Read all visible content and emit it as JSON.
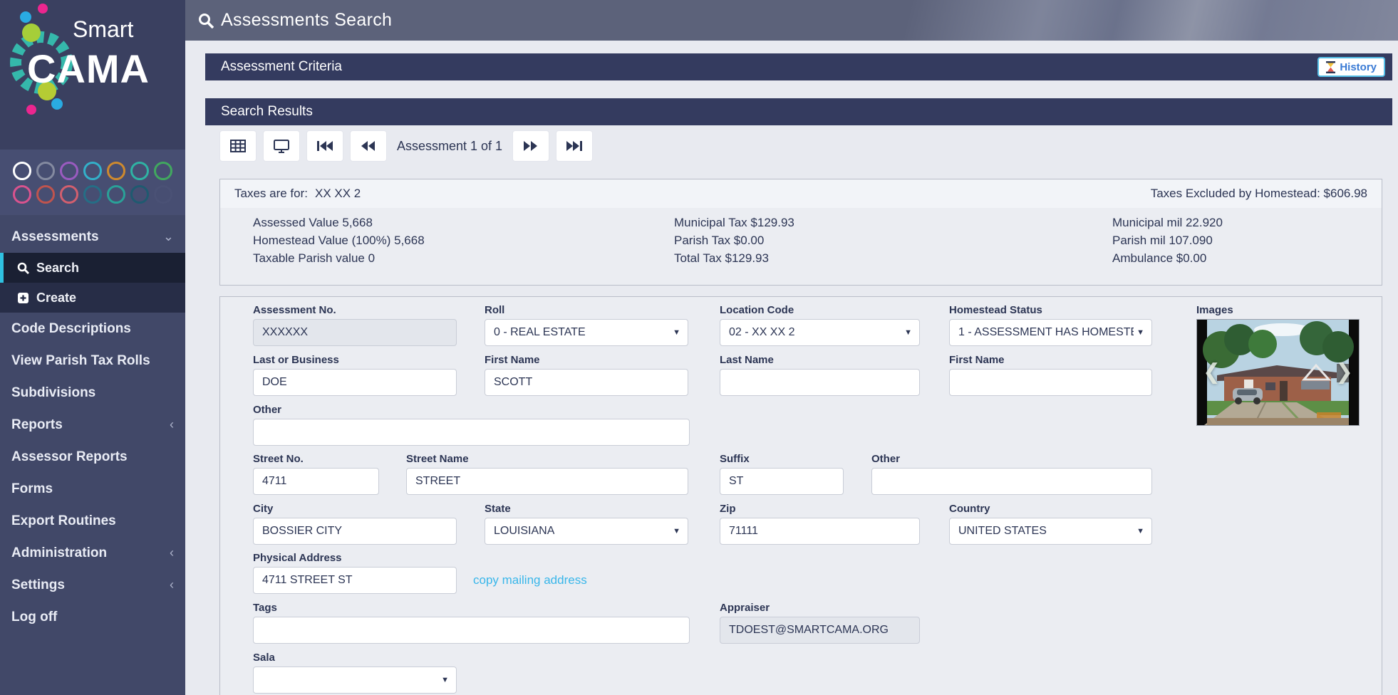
{
  "brand": {
    "smart": "Smart",
    "cama": "CAMA"
  },
  "theme": {
    "accent_cyan": "#2fc1e1",
    "navy_bar": "#343b5f",
    "sidebar_bg": "#414868",
    "link_blue": "#38b6ea",
    "history_blue": "#3a7bd5"
  },
  "icons": {
    "chevron_down": "⌄",
    "chevron_left": "‹",
    "carousel_prev": "❮",
    "carousel_next": "❯",
    "select_caret": "▼"
  },
  "sidebar": {
    "swatches_row1": [
      "#ffffff",
      "#848aa0",
      "#9a5bc0",
      "#33b0c9",
      "#cf8a2e",
      "#2fb3a4",
      "#41a85f"
    ],
    "swatches_row2": [
      "#d9538e",
      "#bf544e",
      "#d25f6e",
      "#256e86",
      "#2aa198",
      "#1f5a70",
      "#4a5175"
    ],
    "items": {
      "assessments": "Assessments",
      "search": "Search",
      "create": "Create",
      "code_descriptions": "Code Descriptions",
      "view_parish_tax_rolls": "View Parish Tax Rolls",
      "subdivisions": "Subdivisions",
      "reports": "Reports",
      "assessor_reports": "Assessor Reports",
      "forms": "Forms",
      "export_routines": "Export Routines",
      "administration": "Administration",
      "settings": "Settings",
      "log_off": "Log off"
    }
  },
  "header": {
    "title": "Assessments Search"
  },
  "sections": {
    "criteria_title": "Assessment Criteria",
    "results_title": "Search Results",
    "history_label": "History"
  },
  "toolbar": {
    "position_label": "Assessment 1 of 1"
  },
  "taxes": {
    "for_label": "Taxes are for:",
    "for_value": "XX XX 2",
    "excluded_text": "Taxes Excluded by Homestead: $606.98",
    "col1": [
      "Assessed Value 5,668",
      "Homestead Value (100%) 5,668",
      "Taxable Parish value 0"
    ],
    "col2": [
      "Municipal Tax $129.93",
      "Parish Tax $0.00",
      "Total Tax $129.93"
    ],
    "col3": [
      "Municipal mil 22.920",
      "Parish mil 107.090",
      "Ambulance $0.00"
    ]
  },
  "form": {
    "assessment_no": {
      "label": "Assessment No.",
      "value": "XXXXXX"
    },
    "roll": {
      "label": "Roll",
      "value": "0 - REAL ESTATE"
    },
    "location_code": {
      "label": "Location Code",
      "value": "02 - XX XX 2"
    },
    "homestead_status": {
      "label": "Homestead Status",
      "value": "1 - ASSESSMENT HAS HOMESTEA"
    },
    "images_label": "Images",
    "last_or_business": {
      "label": "Last or Business",
      "value": "DOE"
    },
    "first_name": {
      "label": "First Name",
      "value": "SCOTT"
    },
    "last_name2": {
      "label": "Last Name",
      "value": ""
    },
    "first_name2": {
      "label": "First Name",
      "value": ""
    },
    "other1": {
      "label": "Other",
      "value": ""
    },
    "street_no": {
      "label": "Street No.",
      "value": "4711"
    },
    "street_name": {
      "label": "Street Name",
      "value": "STREET"
    },
    "suffix": {
      "label": "Suffix",
      "value": "ST"
    },
    "other2": {
      "label": "Other",
      "value": ""
    },
    "city": {
      "label": "City",
      "value": "BOSSIER CITY"
    },
    "state": {
      "label": "State",
      "value": "LOUISIANA"
    },
    "zip": {
      "label": "Zip",
      "value": "71111"
    },
    "country": {
      "label": "Country",
      "value": "UNITED STATES"
    },
    "physical_address": {
      "label": "Physical Address",
      "value": "4711 STREET ST"
    },
    "copy_mailing_link": "copy mailing address",
    "tags": {
      "label": "Tags",
      "value": ""
    },
    "appraiser": {
      "label": "Appraiser",
      "value": "TDOEST@SMARTCAMA.ORG"
    },
    "sala": {
      "label": "Sala",
      "value": ""
    }
  }
}
